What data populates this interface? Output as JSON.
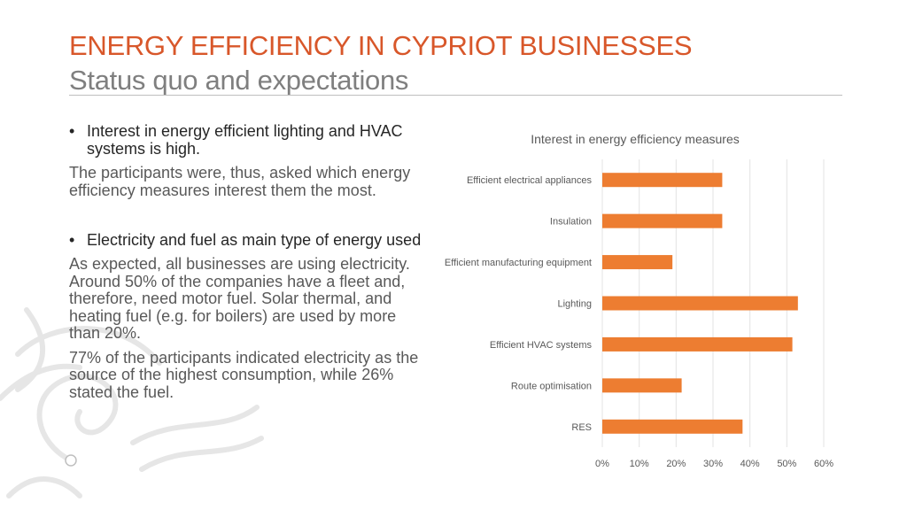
{
  "title": "ENERGY EFFICIENCY IN CYPRIOT BUSINESSES",
  "subtitle": "Status quo and expectations",
  "colors": {
    "title": "#d8572a",
    "subtitle": "#7f7f7f",
    "rule": "#bfbfbf",
    "bar": "#ed7d31"
  },
  "left": {
    "bullet1": "Interest in energy efficient lighting and HVAC systems is high.",
    "para1": "The participants were, thus, asked which energy efficiency measures interest them the most.",
    "bullet2": "Electricity and fuel as main type of energy used",
    "para2": "As expected, all businesses are using electricity. Around 50% of the companies have a fleet and, therefore, need motor fuel. Solar thermal, and heating fuel (e.g. for boilers) are used by more than 20%.",
    "para3": "77% of the participants indicated electricity as the source of the highest consumption, while 26% stated the fuel.",
    "bullet_glyph": "•"
  },
  "chart_data": {
    "type": "bar",
    "orientation": "horizontal",
    "title": "Interest in energy efficiency measures",
    "categories": [
      "Efficient electrical appliances",
      "Insulation",
      "Efficient manufacturing equipment",
      "Lighting",
      "Efficient HVAC systems",
      "Route optimisation",
      "RES"
    ],
    "values": [
      32.5,
      32.5,
      19,
      53,
      51.5,
      21.5,
      38
    ],
    "xlim": [
      0,
      60
    ],
    "xticks": [
      0,
      10,
      20,
      30,
      40,
      50,
      60
    ],
    "tick_labels": [
      "0%",
      "10%",
      "20%",
      "30%",
      "40%",
      "50%",
      "60%"
    ],
    "grid": true,
    "legend": "none"
  }
}
